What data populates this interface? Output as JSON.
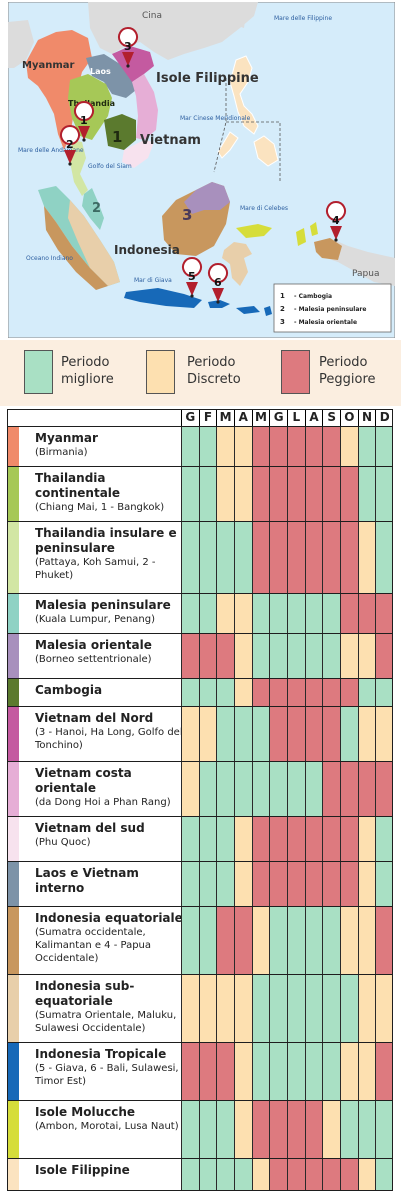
{
  "map": {
    "labels": {
      "myanmar": "Myanmar",
      "cina": "Cina",
      "laos": "Laos",
      "thailandia": "Thailandia",
      "vietnam": "Vietnam",
      "isole_filippine": "Isole Filippine",
      "mare_filippine": "Mare delle Filippine",
      "mar_cinese": "Mar Cinese Meridionale",
      "mare_andamane": "Mare delle Andamane",
      "golfo_siam": "Golfo del Siam",
      "mare_celebes": "Mare di Celebes",
      "indonesia": "Indonesia",
      "oceano_indiano": "Oceano Indiano",
      "mar_giava": "Mar di Giava",
      "papua": "Papua"
    },
    "region_numbers": [
      "1",
      "2",
      "3"
    ],
    "pin_numbers": [
      "1",
      "2",
      "3",
      "4",
      "5",
      "6"
    ],
    "key": [
      {
        "num": "1",
        "label": "- Cambogia"
      },
      {
        "num": "2",
        "label": "- Malesia peninsulare"
      },
      {
        "num": "3",
        "label": "- Malesia orientale"
      }
    ]
  },
  "legend": [
    {
      "color": "#a9e0c4",
      "line1": "Periodo",
      "line2": "migliore"
    },
    {
      "color": "#fde0b0",
      "line1": "Periodo",
      "line2": "Discreto"
    },
    {
      "color": "#dd7a7f",
      "line1": "Periodo",
      "line2": "Peggiore"
    }
  ],
  "palette": {
    "b": "#a9e0c4",
    "d": "#fde0b0",
    "w": "#dd7a7f"
  },
  "months": [
    "G",
    "F",
    "M",
    "A",
    "M",
    "G",
    "L",
    "A",
    "S",
    "O",
    "N",
    "D"
  ],
  "rows": [
    {
      "strip": "#f08a6a",
      "name": "Myanmar",
      "sub": "(Birmania)",
      "cells": "bbddwwwwwdbb"
    },
    {
      "strip": "#a6c857",
      "name": "Thailandia continentale",
      "sub": "(Chiang Mai, 1 - Bangkok)",
      "cells": "bbddwwwwwwbb"
    },
    {
      "strip": "#d2e6a4",
      "name": "Thailandia insulare e peninsulare",
      "sub": "(Pattaya, Koh Samui, 2 - Phuket)",
      "cells": "bbbbwwwwwwdb"
    },
    {
      "strip": "#8fd2c4",
      "name": "Malesia peninsulare",
      "sub": "(Kuala Lumpur, Penang)",
      "cells": "bbddbbbbbwww"
    },
    {
      "strip": "#a890bd",
      "name": "Malesia orientale",
      "sub": "(Borneo settentrionale)",
      "cells": "wwwdbbbbbddw"
    },
    {
      "strip": "#5b7a2e",
      "name": "Cambogia",
      "sub": "",
      "cells": "bbbdwwwwwwbb"
    },
    {
      "strip": "#c45aa0",
      "name": "Vietnam del Nord",
      "sub": "(3 - Hanoi, Ha Long, Golfo del Tonchino)",
      "cells": "ddbbbwwwwbdd"
    },
    {
      "strip": "#e6aed6",
      "name": "Vietnam costa orientale",
      "sub": "(da Dong Hoi a Phan Rang)",
      "cells": "dbbbbbbbwwww"
    },
    {
      "strip": "#f7e2ee",
      "name": "Vietnam del sud",
      "sub": "(Phu Quoc)",
      "cells": "bbbdwwwwwwdb"
    },
    {
      "strip": "#7d93a8",
      "name": "Laos e Vietnam interno",
      "sub": "",
      "cells": "bbbdwwwwwwdb"
    },
    {
      "strip": "#c8975e",
      "name": "Indonesia equatoriale",
      "sub": "(Sumatra occidentale, Kalimantan e 4 - Papua Occidentale)",
      "cells": "bbwwdbbbbddw"
    },
    {
      "strip": "#e8cfaa",
      "name": "Indonesia sub-equatoriale",
      "sub": "(Sumatra Orientale, Maluku, Sulawesi Occidentale)",
      "cells": "ddddbbbbbbdd"
    },
    {
      "strip": "#1769b8",
      "name": "Indonesia Tropicale",
      "sub": "(5 - Giava, 6 - Bali, Sulawesi, Timor Est)",
      "cells": "wwwdbbbbbddw"
    },
    {
      "strip": "#d6dd3a",
      "name": "Isole Molucche",
      "sub": "(Ambon, Morotai, Lusa Naut)",
      "cells": "bbbdwwwwdbbb"
    },
    {
      "strip": "#fbe3c0",
      "name": "Isole Filippine",
      "sub": "",
      "cells": "bbbbdwwwwwdb"
    }
  ]
}
